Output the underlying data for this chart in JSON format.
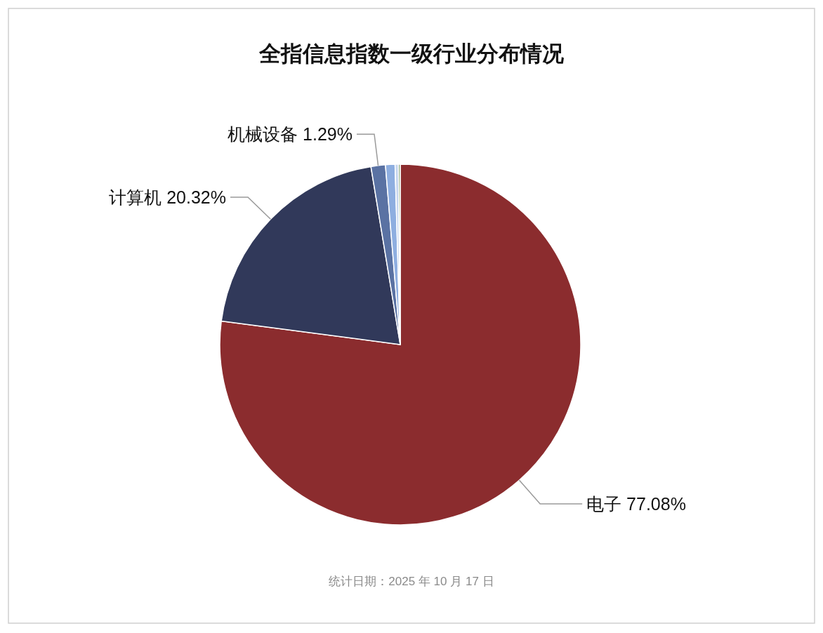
{
  "chart_data": {
    "type": "pie",
    "title": "全指信息指数一级行业分布情况",
    "categories": [
      "电子",
      "计算机",
      "机械设备",
      null,
      null,
      null
    ],
    "values": [
      77.08,
      20.32,
      1.29,
      0.85,
      0.3,
      0.16
    ],
    "value_labels": [
      "77.08%",
      "20.32%",
      "1.29%",
      null,
      null,
      null
    ],
    "colors": [
      "#8b2c2e",
      "#31395a",
      "#5a72a3",
      "#8eaee0",
      "#c5d5ee",
      "#7a9a6a"
    ],
    "annotations": [
      "统计日期：2025 年 10 月 17 日"
    ],
    "legend": false
  }
}
